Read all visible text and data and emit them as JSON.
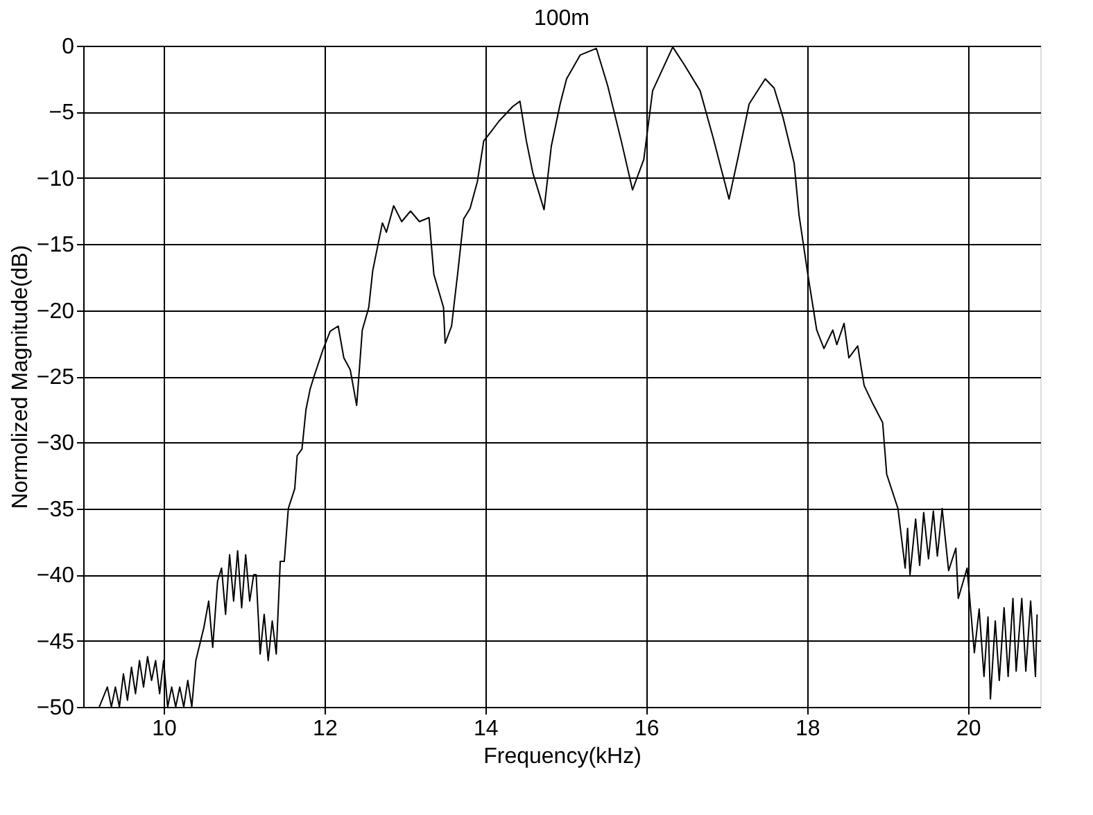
{
  "chart_data": {
    "type": "line",
    "title": "100m",
    "xlabel": "Frequency(kHz)",
    "ylabel": "Normolized Magnitude(dB)",
    "xlim": [
      9,
      20.9
    ],
    "xticks": [
      10,
      12,
      14,
      16,
      18,
      20
    ],
    "ylim": [
      -50,
      0
    ],
    "yticks": [
      -50,
      -45,
      -40,
      -35,
      -30,
      -25,
      -20,
      -15,
      -10,
      -5,
      0
    ],
    "grid": true,
    "line_style": "solid",
    "marker": "none",
    "series": [
      {
        "color": "#000000",
        "x": [
          9.2,
          9.3,
          9.35,
          9.4,
          9.45,
          9.5,
          9.55,
          9.6,
          9.65,
          9.7,
          9.75,
          9.8,
          9.85,
          9.9,
          9.95,
          10.0,
          10.05,
          10.1,
          10.15,
          10.2,
          10.25,
          10.3,
          10.35,
          10.4,
          10.5,
          10.56,
          10.61,
          10.67,
          10.72,
          10.77,
          10.82,
          10.87,
          10.92,
          10.97,
          11.02,
          11.07,
          11.12,
          11.15,
          11.2,
          11.25,
          11.3,
          11.35,
          11.4,
          11.45,
          11.5,
          11.55,
          11.63,
          11.66,
          11.72,
          11.77,
          11.82,
          11.87,
          11.98,
          12.07,
          12.17,
          12.24,
          12.32,
          12.4,
          12.47,
          12.55,
          12.6,
          12.72,
          12.77,
          12.86,
          12.96,
          13.07,
          13.18,
          13.3,
          13.36,
          13.48,
          13.5,
          13.58,
          13.66,
          13.73,
          13.81,
          13.9,
          13.98,
          14.07,
          14.17,
          14.34,
          14.43,
          14.51,
          14.59,
          14.73,
          14.82,
          14.93,
          15.01,
          15.18,
          15.38,
          15.52,
          15.69,
          15.83,
          15.97,
          16.08,
          16.33,
          16.47,
          16.67,
          16.83,
          17.03,
          17.14,
          17.28,
          17.48,
          17.59,
          17.7,
          17.84,
          17.9,
          18.01,
          18.12,
          18.21,
          18.32,
          18.37,
          18.46,
          18.52,
          18.63,
          18.68,
          18.71,
          18.82,
          18.94,
          18.99,
          19.13,
          19.22,
          19.25,
          19.28,
          19.35,
          19.4,
          19.45,
          19.51,
          19.57,
          19.62,
          19.68,
          19.76,
          19.85,
          19.88,
          19.99,
          20.08,
          20.14,
          20.2,
          20.25,
          20.28,
          20.34,
          20.39,
          20.45,
          20.5,
          20.56,
          20.6,
          20.67,
          20.72,
          20.78,
          20.84,
          20.86
        ],
        "values": [
          -50,
          -48.5,
          -50,
          -48.5,
          -50,
          -47.5,
          -49.5,
          -47,
          -49,
          -46.5,
          -48.5,
          -46.2,
          -48,
          -46.5,
          -49,
          -46.5,
          -50,
          -48.5,
          -50,
          -48.5,
          -50,
          -48,
          -50,
          -46.5,
          -44,
          -42,
          -45.5,
          -40.5,
          -39.5,
          -43,
          -38.5,
          -42,
          -38.2,
          -42.5,
          -38.5,
          -42,
          -40,
          -40,
          -46,
          -43,
          -46.5,
          -43.5,
          -46,
          -39,
          -39,
          -35,
          -33.5,
          -31,
          -30.5,
          -27.5,
          -26,
          -25,
          -23,
          -21.6,
          -21.2,
          -23.6,
          -24.5,
          -27.2,
          -21.5,
          -19.8,
          -17,
          -13.4,
          -14.1,
          -12.1,
          -13.3,
          -12.5,
          -13.3,
          -13,
          -17.3,
          -19.8,
          -22.5,
          -21.2,
          -17,
          -13.1,
          -12.3,
          -10.3,
          -7.2,
          -6.5,
          -5.7,
          -4.6,
          -4.2,
          -7.2,
          -9.6,
          -12.4,
          -7.6,
          -4.4,
          -2.5,
          -0.7,
          -0.2,
          -3.0,
          -7.2,
          -10.9,
          -8.6,
          -3.4,
          -0.1,
          -1.4,
          -3.4,
          -6.9,
          -11.6,
          -8.5,
          -4.4,
          -2.5,
          -3.2,
          -5.4,
          -8.9,
          -12.8,
          -17.3,
          -21.5,
          -22.9,
          -21.5,
          -22.6,
          -21,
          -23.6,
          -22.7,
          -24.6,
          -25.7,
          -27.1,
          -28.5,
          -32.4,
          -35,
          -39.5,
          -36.5,
          -40,
          -35.8,
          -39.3,
          -35.3,
          -38.8,
          -35.2,
          -38.6,
          -35,
          -39.7,
          -38,
          -41.8,
          -39.5,
          -45.9,
          -42.6,
          -47.7,
          -43.2,
          -49.4,
          -43.5,
          -48,
          -42.5,
          -47.7,
          -41.8,
          -47.3,
          -41.8,
          -47.3,
          -42,
          -47.7,
          -43
        ]
      }
    ]
  }
}
